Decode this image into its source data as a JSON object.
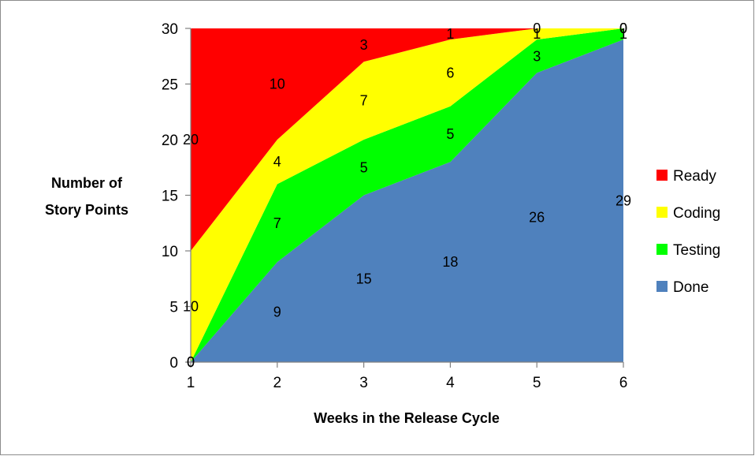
{
  "chart_data": {
    "type": "area",
    "stacked": true,
    "x": [
      1,
      2,
      3,
      4,
      5,
      6
    ],
    "xlabel": "Weeks in the Release Cycle",
    "ylabel": "Number of Story Points",
    "xlim": [
      1,
      6
    ],
    "ylim": [
      0,
      30
    ],
    "yticks": [
      0,
      5,
      10,
      15,
      20,
      25,
      30
    ],
    "xticks": [
      1,
      2,
      3,
      4,
      5,
      6
    ],
    "grid": false,
    "legend_position": "right",
    "series": [
      {
        "name": "Done",
        "values": [
          0,
          9,
          15,
          18,
          26,
          29
        ],
        "color": "#4f81bd"
      },
      {
        "name": "Testing",
        "values": [
          0,
          7,
          5,
          5,
          3,
          1
        ],
        "color": "#00ff00"
      },
      {
        "name": "Coding",
        "values": [
          10,
          4,
          7,
          6,
          1,
          0
        ],
        "color": "#ffff00"
      },
      {
        "name": "Ready",
        "values": [
          20,
          10,
          3,
          1,
          0,
          0
        ],
        "color": "#ff0000"
      }
    ],
    "legend_order": [
      "Ready",
      "Coding",
      "Testing",
      "Done"
    ]
  }
}
